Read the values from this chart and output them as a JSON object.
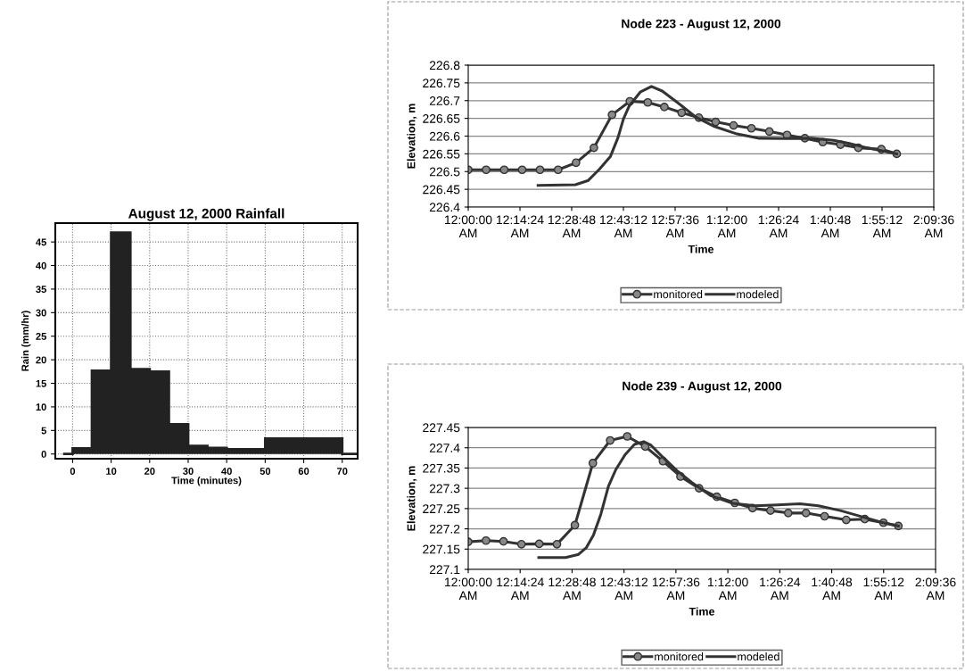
{
  "chart_data": [
    {
      "type": "histogram",
      "title": "August 12, 2000 Rainfall",
      "xlabel": "Time (minutes)",
      "ylabel": "Rain (mm/hr)",
      "bins": [
        -2.5,
        0,
        5,
        10,
        15,
        20,
        25,
        30,
        35,
        40,
        50,
        70,
        74
      ],
      "values": [
        0,
        1.2,
        17.7,
        47,
        18,
        17.5,
        6.3,
        1.7,
        1.3,
        1.0,
        3.3,
        0
      ],
      "color": "#222222",
      "xlim": [
        -4.5,
        74
      ],
      "ylim": [
        -1,
        49
      ],
      "xticks": [
        0,
        10,
        20,
        30,
        40,
        50,
        60,
        70
      ],
      "yticks": [
        0,
        5,
        10,
        15,
        20,
        25,
        30,
        35,
        40,
        45
      ],
      "grid": true
    },
    {
      "type": "line",
      "title": "Node 223 - August 12, 2000",
      "xlabel": "Time",
      "ylabel": "Elevation, m",
      "legend": "bottom",
      "grid": "y",
      "xlim": [
        0,
        2.16
      ],
      "ylim": [
        226.4,
        226.8
      ],
      "xticks": [
        {
          "value": 0,
          "label": "12:00:00\nAM"
        },
        {
          "value": 0.24,
          "label": "12:14:24\nAM"
        },
        {
          "value": 0.48,
          "label": "12:28:48\nAM"
        },
        {
          "value": 0.72,
          "label": "12:43:12\nAM"
        },
        {
          "value": 0.96,
          "label": "12:57:36\nAM"
        },
        {
          "value": 1.2,
          "label": "1:12:00\nAM"
        },
        {
          "value": 1.44,
          "label": "1:26:24\nAM"
        },
        {
          "value": 1.68,
          "label": "1:40:48\nAM"
        },
        {
          "value": 1.92,
          "label": "1:55:12\nAM"
        },
        {
          "value": 2.16,
          "label": "2:09:36\nAM"
        }
      ],
      "yticks": [
        226.4,
        226.45,
        226.5,
        226.55,
        226.6,
        226.65,
        226.7,
        226.75,
        226.8
      ],
      "series": [
        {
          "name": "monitored",
          "color": "#333333",
          "marker": "circle",
          "x": [
            0,
            0.083,
            0.167,
            0.25,
            0.333,
            0.417,
            0.5,
            0.583,
            0.667,
            0.75,
            0.833,
            0.91,
            0.99,
            1.07,
            1.148,
            1.231,
            1.314,
            1.397,
            1.479,
            1.562,
            1.645,
            1.727,
            1.81,
            1.917,
            1.988
          ],
          "values": [
            226.505,
            226.505,
            226.505,
            226.505,
            226.505,
            226.505,
            226.525,
            226.567,
            226.66,
            226.698,
            226.695,
            226.682,
            226.666,
            226.652,
            226.64,
            226.63,
            226.622,
            226.613,
            226.603,
            226.594,
            226.583,
            226.576,
            226.567,
            226.563,
            226.55
          ]
        },
        {
          "name": "modeled",
          "color": "#333333",
          "marker": "none",
          "x": [
            0.324,
            0.497,
            0.557,
            0.609,
            0.66,
            0.695,
            0.72,
            0.747,
            0.798,
            0.85,
            0.9,
            0.97,
            1.057,
            1.143,
            1.247,
            1.35,
            1.47,
            1.59,
            1.695,
            1.764,
            1.85,
            1.988
          ],
          "values": [
            226.461,
            226.463,
            226.475,
            226.507,
            226.543,
            226.596,
            226.648,
            226.685,
            226.724,
            226.74,
            226.727,
            226.695,
            226.653,
            226.627,
            226.606,
            226.594,
            226.593,
            226.594,
            226.588,
            226.58,
            226.567,
            226.55
          ]
        }
      ]
    },
    {
      "type": "line",
      "title": "Node 239 - August 12, 2000",
      "xlabel": "Time",
      "ylabel": "Elevation, m",
      "legend": "bottom",
      "grid": "y",
      "xlim": [
        0,
        2.16
      ],
      "ylim": [
        227.1,
        227.45
      ],
      "xticks": [
        {
          "value": 0,
          "label": "12:00:00\nAM"
        },
        {
          "value": 0.24,
          "label": "12:14:24\nAM"
        },
        {
          "value": 0.48,
          "label": "12:28:48\nAM"
        },
        {
          "value": 0.72,
          "label": "12:43:12\nAM"
        },
        {
          "value": 0.96,
          "label": "12:57:36\nAM"
        },
        {
          "value": 1.2,
          "label": "1:12:00\nAM"
        },
        {
          "value": 1.44,
          "label": "1:26:24\nAM"
        },
        {
          "value": 1.68,
          "label": "1:40:48\nAM"
        },
        {
          "value": 1.92,
          "label": "1:55:12\nAM"
        },
        {
          "value": 2.16,
          "label": "2:09:36\nAM"
        }
      ],
      "yticks": [
        227.1,
        227.15,
        227.2,
        227.25,
        227.3,
        227.35,
        227.4,
        227.45
      ],
      "series": [
        {
          "name": "monitored",
          "color": "#333333",
          "marker": "circle",
          "x": [
            0,
            0.082,
            0.163,
            0.246,
            0.328,
            0.41,
            0.493,
            0.576,
            0.656,
            0.735,
            0.818,
            0.9,
            0.981,
            1.067,
            1.149,
            1.232,
            1.314,
            1.397,
            1.479,
            1.561,
            1.647,
            1.747,
            1.833,
            1.919,
            1.988
          ],
          "values": [
            227.168,
            227.171,
            227.169,
            227.162,
            227.163,
            227.162,
            227.209,
            227.362,
            227.418,
            227.428,
            227.403,
            227.367,
            227.329,
            227.3,
            227.279,
            227.264,
            227.251,
            227.245,
            227.239,
            227.239,
            227.231,
            227.222,
            227.224,
            227.215,
            227.207
          ]
        },
        {
          "name": "modeled",
          "color": "#333333",
          "marker": "none",
          "x": [
            0.326,
            0.45,
            0.51,
            0.545,
            0.579,
            0.613,
            0.648,
            0.682,
            0.725,
            0.768,
            0.811,
            0.845,
            0.897,
            0.966,
            1.034,
            1.12,
            1.223,
            1.326,
            1.43,
            1.533,
            1.619,
            1.72,
            1.825,
            1.91,
            1.988
          ],
          "values": [
            227.129,
            227.129,
            227.137,
            227.153,
            227.185,
            227.236,
            227.305,
            227.346,
            227.383,
            227.408,
            227.415,
            227.406,
            227.378,
            227.343,
            227.314,
            227.282,
            227.263,
            227.257,
            227.259,
            227.262,
            227.257,
            227.245,
            227.229,
            227.216,
            227.207
          ]
        }
      ]
    }
  ]
}
